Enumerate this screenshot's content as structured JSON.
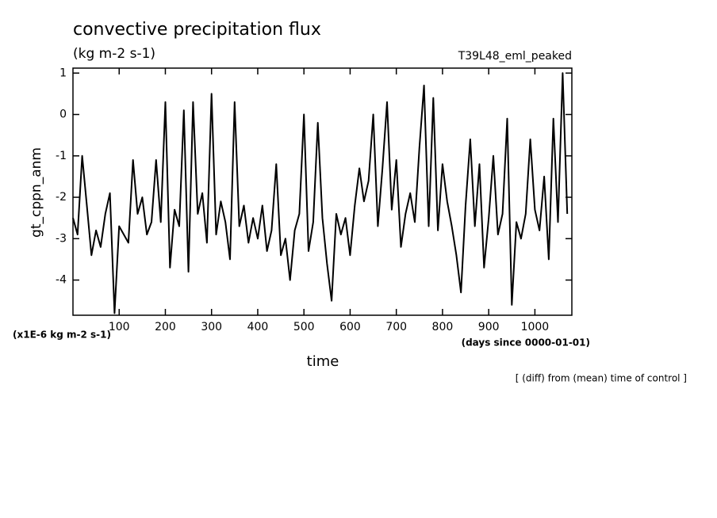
{
  "chart_data": {
    "type": "line",
    "title": "convective precipitation flux",
    "subtitle": "(kg m-2 s-1)",
    "annotation": "T39L48_eml_peaked",
    "y_label": "gt_cppn_anm",
    "y_unit": "(x1E-6 kg m-2 s-1)",
    "x_unit": "(days since 0000-01-01)",
    "x_label": "time",
    "note": "[ (diff) from (mean) time of control ]",
    "xlim": [
      0,
      1080
    ],
    "ylim": [
      -4.85,
      1.12
    ],
    "xticks": [
      100,
      200,
      300,
      400,
      500,
      600,
      700,
      800,
      900,
      1000
    ],
    "yticks": [
      -4,
      -3,
      -2,
      -1,
      0,
      1
    ],
    "color": "#000000",
    "x": [
      0,
      10,
      20,
      30,
      40,
      50,
      60,
      70,
      80,
      90,
      100,
      110,
      120,
      130,
      140,
      150,
      160,
      170,
      180,
      190,
      200,
      210,
      220,
      230,
      240,
      250,
      260,
      270,
      280,
      290,
      300,
      310,
      320,
      330,
      340,
      350,
      360,
      370,
      380,
      390,
      400,
      410,
      420,
      430,
      440,
      450,
      460,
      470,
      480,
      490,
      500,
      510,
      520,
      530,
      540,
      550,
      560,
      570,
      580,
      590,
      600,
      610,
      620,
      630,
      640,
      650,
      660,
      670,
      680,
      690,
      700,
      710,
      720,
      730,
      740,
      750,
      760,
      770,
      780,
      790,
      800,
      810,
      820,
      830,
      840,
      850,
      860,
      870,
      880,
      890,
      900,
      910,
      920,
      930,
      940,
      950,
      960,
      970,
      980,
      990,
      1000,
      1010,
      1020,
      1030,
      1040,
      1050,
      1060,
      1070
    ],
    "values": [
      -2.5,
      -2.9,
      -1.0,
      -2.2,
      -3.4,
      -2.8,
      -3.2,
      -2.4,
      -1.9,
      -4.8,
      -2.7,
      -2.9,
      -3.1,
      -1.1,
      -2.4,
      -2.0,
      -2.9,
      -2.6,
      -1.1,
      -2.6,
      0.3,
      -3.7,
      -2.3,
      -2.7,
      0.1,
      -3.8,
      0.3,
      -2.4,
      -1.9,
      -3.1,
      0.5,
      -2.9,
      -2.1,
      -2.6,
      -3.5,
      0.3,
      -2.7,
      -2.2,
      -3.1,
      -2.5,
      -3.0,
      -2.2,
      -3.3,
      -2.8,
      -1.2,
      -3.4,
      -3.0,
      -4.0,
      -2.8,
      -2.4,
      0.0,
      -3.3,
      -2.6,
      -0.2,
      -2.5,
      -3.6,
      -4.5,
      -2.4,
      -2.9,
      -2.5,
      -3.4,
      -2.2,
      -1.3,
      -2.1,
      -1.6,
      0.0,
      -2.7,
      -1.3,
      0.3,
      -2.3,
      -1.1,
      -3.2,
      -2.4,
      -1.9,
      -2.6,
      -0.8,
      0.7,
      -2.7,
      0.4,
      -2.8,
      -1.2,
      -2.1,
      -2.7,
      -3.4,
      -4.3,
      -2.2,
      -0.6,
      -2.7,
      -1.2,
      -3.7,
      -2.5,
      -1.0,
      -2.9,
      -2.4,
      -0.1,
      -4.6,
      -2.6,
      -3.0,
      -2.4,
      -0.6,
      -2.3,
      -2.8,
      -1.5,
      -3.5,
      -0.1,
      -2.6,
      1.0,
      -2.4
    ]
  }
}
